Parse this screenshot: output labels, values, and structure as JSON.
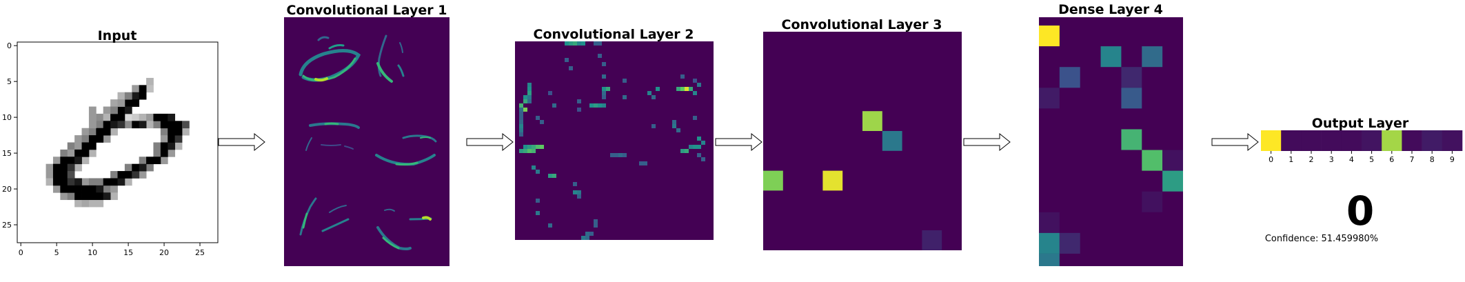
{
  "panels": {
    "input": {
      "title": "Input",
      "x_ticks": [
        "0",
        "5",
        "10",
        "15",
        "20",
        "25"
      ],
      "y_ticks": [
        "0",
        "5",
        "10",
        "15",
        "20",
        "25"
      ]
    },
    "conv1": {
      "title": "Convolutional Layer 1"
    },
    "conv2": {
      "title": "Convolutional Layer 2"
    },
    "conv3": {
      "title": "Convolutional Layer 3"
    },
    "dense4": {
      "title": "Dense Layer 4"
    },
    "output": {
      "title": "Output Layer",
      "x_ticks": [
        "0",
        "1",
        "2",
        "3",
        "4",
        "5",
        "6",
        "7",
        "8",
        "9"
      ],
      "values": [
        1.0,
        0.03,
        0.03,
        0.03,
        0.03,
        0.06,
        0.86,
        0.03,
        0.08,
        0.05
      ],
      "prediction": "0",
      "confidence": "Confidence: 51.459980%"
    }
  },
  "colors": {
    "viridis_low": "#440154",
    "viridis_high": "#fde725",
    "arrow_fill": "#ffffff",
    "arrow_stroke": "#000000"
  }
}
